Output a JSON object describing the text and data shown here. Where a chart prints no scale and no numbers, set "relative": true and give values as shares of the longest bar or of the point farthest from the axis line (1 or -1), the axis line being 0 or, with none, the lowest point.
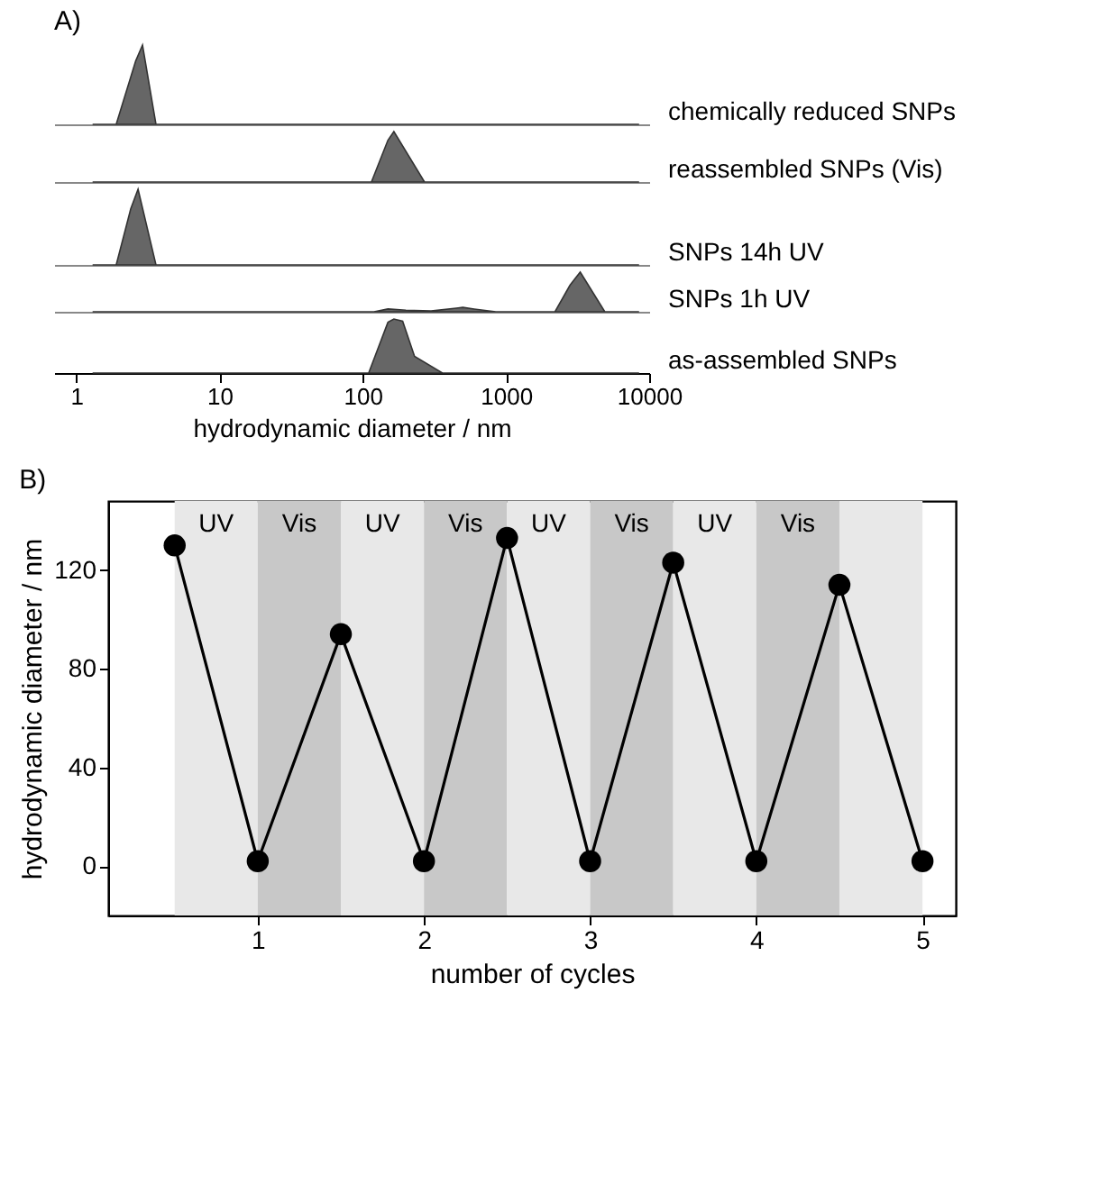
{
  "chart_data": [
    {
      "type": "area",
      "title": "A)",
      "relative": true,
      "log": "x",
      "xlim": [
        0.7,
        10000
      ],
      "tick_labels": false,
      "series": [
        {
          "name": "chemically reduced SNPs",
          "color": "#666666",
          "x": [
            1.3,
            1.9,
            2.6,
            2.9,
            3.6,
            8500
          ],
          "values": [
            0,
            0,
            0.8,
            1,
            0,
            0
          ]
        }
      ]
    },
    {
      "type": "area",
      "relative": true,
      "log": "x",
      "xlim": [
        0.7,
        10000
      ],
      "tick_labels": false,
      "series": [
        {
          "name": "reassembled SNPs (Vis)",
          "color": "#666666",
          "x": [
            1.3,
            115,
            150,
            165,
            270,
            8500
          ],
          "values": [
            0,
            0,
            0.83,
            1,
            0,
            0
          ]
        }
      ]
    },
    {
      "type": "area",
      "relative": true,
      "log": "x",
      "xlim": [
        0.7,
        10000
      ],
      "tick_labels": false,
      "series": [
        {
          "name": "SNPs 14h UV",
          "color": "#666666",
          "x": [
            1.3,
            1.9,
            2.4,
            2.7,
            3.6,
            8500
          ],
          "values": [
            0,
            0,
            0.74,
            1,
            0,
            0
          ]
        }
      ]
    },
    {
      "type": "area",
      "relative": true,
      "log": "x",
      "xlim": [
        0.7,
        10000
      ],
      "tick_labels": false,
      "series": [
        {
          "name": "SNPs 1h UV",
          "color": "#666666",
          "x": [
            1.3,
            120,
            150,
            200,
            300,
            450,
            500,
            600,
            850,
            2200,
            2800,
            3300,
            4900,
            8500
          ],
          "values": [
            0,
            0,
            0.07,
            0.04,
            0.02,
            0.09,
            0.11,
            0.07,
            0,
            0,
            0.67,
            1,
            0,
            0
          ]
        }
      ]
    },
    {
      "type": "area",
      "relative": true,
      "log": "x",
      "xlabel": "hydrodynamic diameter / nm",
      "xlim": [
        0.7,
        10000
      ],
      "xticks": [
        1,
        10,
        100,
        1000,
        10000
      ],
      "tick_labels": "x",
      "series": [
        {
          "name": "as-assembled SNPs",
          "color": "#666666",
          "x": [
            1.3,
            110,
            150,
            165,
            190,
            230,
            360,
            8500
          ],
          "values": [
            0,
            0,
            0.94,
            1,
            0.96,
            0.31,
            0,
            0
          ]
        }
      ]
    },
    {
      "type": "line",
      "title": "B)",
      "xlabel": "number of cycles",
      "ylabel": "hydrodynamic diameter / nm",
      "xlim": [
        0.1,
        5.2
      ],
      "ylim": [
        -20,
        148
      ],
      "xticks": [
        1,
        2,
        3,
        4,
        5
      ],
      "yticks": [
        0,
        40,
        80,
        120
      ],
      "marker": "circle",
      "line_style": "solid",
      "series": [
        {
          "color": "#000000",
          "x": [
            0.5,
            1,
            1.5,
            2,
            2.5,
            3,
            3.5,
            4,
            4.5,
            5
          ],
          "values": [
            130,
            2,
            94,
            2,
            133,
            2,
            123,
            2,
            114,
            2
          ]
        }
      ],
      "bands": [
        {
          "axis": "x",
          "from": 0.5,
          "to": 1,
          "label": "UV",
          "color": "#e8e8e8"
        },
        {
          "axis": "x",
          "from": 1,
          "to": 1.5,
          "label": "Vis",
          "color": "#c8c8c8"
        },
        {
          "axis": "x",
          "from": 1.5,
          "to": 2,
          "label": "UV",
          "color": "#e8e8e8"
        },
        {
          "axis": "x",
          "from": 2,
          "to": 2.5,
          "label": "Vis",
          "color": "#c8c8c8"
        },
        {
          "axis": "x",
          "from": 2.5,
          "to": 3,
          "label": "UV",
          "color": "#e8e8e8"
        },
        {
          "axis": "x",
          "from": 3,
          "to": 3.5,
          "label": "Vis",
          "color": "#c8c8c8"
        },
        {
          "axis": "x",
          "from": 3.5,
          "to": 4,
          "label": "UV",
          "color": "#e8e8e8"
        },
        {
          "axis": "x",
          "from": 4,
          "to": 4.5,
          "label": "Vis",
          "color": "#c8c8c8"
        },
        {
          "axis": "x",
          "from": 4.5,
          "to": 5,
          "label": null,
          "color": "#e8e8e8"
        }
      ]
    }
  ]
}
